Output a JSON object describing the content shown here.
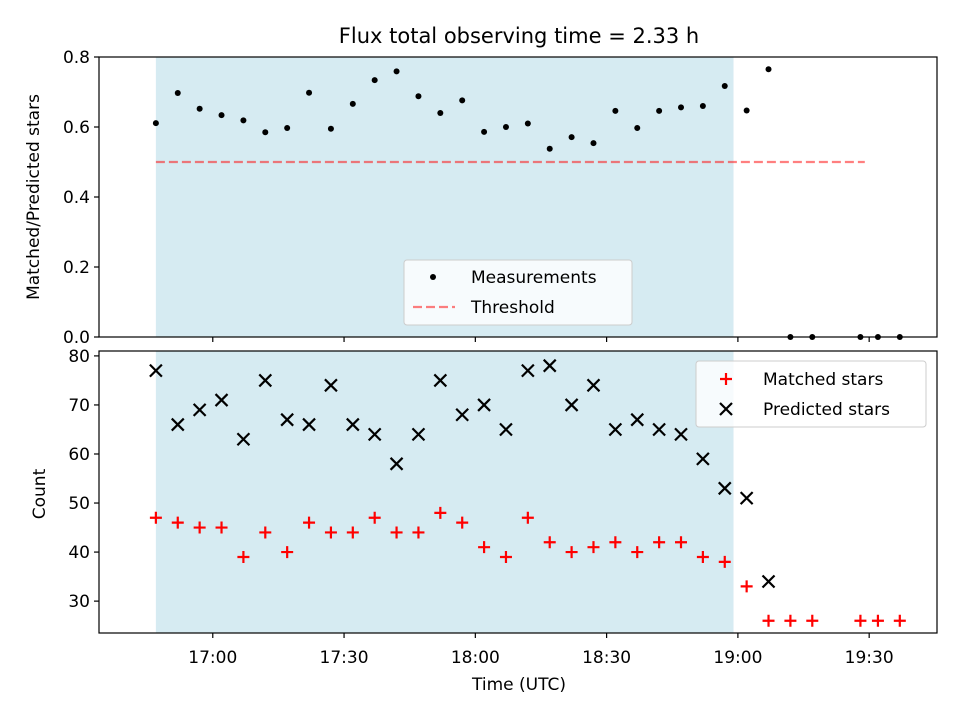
{
  "title": "Flux total observing time = 2.33 h",
  "colors": {
    "shade": "#add8e6",
    "threshold": "#ff0000",
    "matched": "#ff0000",
    "predicted": "#000000",
    "measurement": "#000000",
    "legend_bg": "#ffffff"
  },
  "chart_data": [
    {
      "type": "scatter",
      "ylabel": "Matched/Predicted stars",
      "ylim": [
        0,
        0.8
      ],
      "yticks": [
        "0.0",
        "0.2",
        "0.4",
        "0.6",
        "0.8"
      ],
      "legend": {
        "placement": "bottom-center",
        "entries": [
          "Measurements",
          "Threshold"
        ]
      },
      "shaded_span": [
        "16:47",
        "18:59"
      ],
      "threshold": {
        "value": 0.5,
        "x_range": [
          "16:47",
          "19:29"
        ]
      },
      "series": [
        {
          "name": "Measurements",
          "points": [
            [
              "16:47",
              0.611
            ],
            [
              "16:52",
              0.697
            ],
            [
              "16:57",
              0.652
            ],
            [
              "17:02",
              0.634
            ],
            [
              "17:07",
              0.619
            ],
            [
              "17:12",
              0.585
            ],
            [
              "17:17",
              0.597
            ],
            [
              "17:22",
              0.698
            ],
            [
              "17:27",
              0.595
            ],
            [
              "17:32",
              0.666
            ],
            [
              "17:37",
              0.734
            ],
            [
              "17:42",
              0.759
            ],
            [
              "17:47",
              0.688
            ],
            [
              "17:52",
              0.64
            ],
            [
              "17:57",
              0.676
            ],
            [
              "18:02",
              0.586
            ],
            [
              "18:07",
              0.6
            ],
            [
              "18:12",
              0.61
            ],
            [
              "18:17",
              0.538
            ],
            [
              "18:22",
              0.571
            ],
            [
              "18:27",
              0.554
            ],
            [
              "18:32",
              0.646
            ],
            [
              "18:37",
              0.597
            ],
            [
              "18:42",
              0.646
            ],
            [
              "18:47",
              0.656
            ],
            [
              "18:52",
              0.66
            ],
            [
              "18:57",
              0.717
            ],
            [
              "19:02",
              0.647
            ],
            [
              "19:07",
              0.765
            ],
            [
              "19:12",
              0.0
            ],
            [
              "19:17",
              0.0
            ],
            [
              "19:28",
              0.0
            ],
            [
              "19:32",
              0.0
            ],
            [
              "19:37",
              0.0
            ]
          ]
        }
      ]
    },
    {
      "type": "scatter",
      "xlabel": "Time (UTC)",
      "ylabel": "Count",
      "ylim": [
        23.5,
        81
      ],
      "yticks": [
        "30",
        "40",
        "50",
        "60",
        "70",
        "80"
      ],
      "xticks": [
        "17:00",
        "17:30",
        "18:00",
        "18:30",
        "19:00",
        "19:30"
      ],
      "legend": {
        "placement": "top-right",
        "entries": [
          "Matched stars",
          "Predicted stars"
        ]
      },
      "shaded_span": [
        "16:47",
        "18:59"
      ],
      "series": [
        {
          "name": "Matched stars",
          "points": [
            [
              "16:47",
              47
            ],
            [
              "16:52",
              46
            ],
            [
              "16:57",
              45
            ],
            [
              "17:02",
              45
            ],
            [
              "17:07",
              39
            ],
            [
              "17:12",
              44
            ],
            [
              "17:17",
              40
            ],
            [
              "17:22",
              46
            ],
            [
              "17:27",
              44
            ],
            [
              "17:32",
              44
            ],
            [
              "17:37",
              47
            ],
            [
              "17:42",
              44
            ],
            [
              "17:47",
              44
            ],
            [
              "17:52",
              48
            ],
            [
              "17:57",
              46
            ],
            [
              "18:02",
              41
            ],
            [
              "18:07",
              39
            ],
            [
              "18:12",
              47
            ],
            [
              "18:17",
              42
            ],
            [
              "18:22",
              40
            ],
            [
              "18:27",
              41
            ],
            [
              "18:32",
              42
            ],
            [
              "18:37",
              40
            ],
            [
              "18:42",
              42
            ],
            [
              "18:47",
              42
            ],
            [
              "18:52",
              39
            ],
            [
              "18:57",
              38
            ],
            [
              "19:02",
              33
            ],
            [
              "19:07",
              26
            ],
            [
              "19:12",
              26
            ],
            [
              "19:17",
              26
            ],
            [
              "19:28",
              26
            ],
            [
              "19:32",
              26
            ],
            [
              "19:37",
              26
            ]
          ]
        },
        {
          "name": "Predicted stars",
          "points": [
            [
              "16:47",
              77
            ],
            [
              "16:52",
              66
            ],
            [
              "16:57",
              69
            ],
            [
              "17:02",
              71
            ],
            [
              "17:07",
              63
            ],
            [
              "17:12",
              75
            ],
            [
              "17:17",
              67
            ],
            [
              "17:22",
              66
            ],
            [
              "17:27",
              74
            ],
            [
              "17:32",
              66
            ],
            [
              "17:37",
              64
            ],
            [
              "17:42",
              58
            ],
            [
              "17:47",
              64
            ],
            [
              "17:52",
              75
            ],
            [
              "17:57",
              68
            ],
            [
              "18:02",
              70
            ],
            [
              "18:07",
              65
            ],
            [
              "18:12",
              77
            ],
            [
              "18:17",
              78
            ],
            [
              "18:22",
              70
            ],
            [
              "18:27",
              74
            ],
            [
              "18:32",
              65
            ],
            [
              "18:37",
              67
            ],
            [
              "18:42",
              65
            ],
            [
              "18:47",
              64
            ],
            [
              "18:52",
              59
            ],
            [
              "18:57",
              53
            ],
            [
              "19:02",
              51
            ],
            [
              "19:07",
              34
            ]
          ]
        }
      ]
    }
  ]
}
